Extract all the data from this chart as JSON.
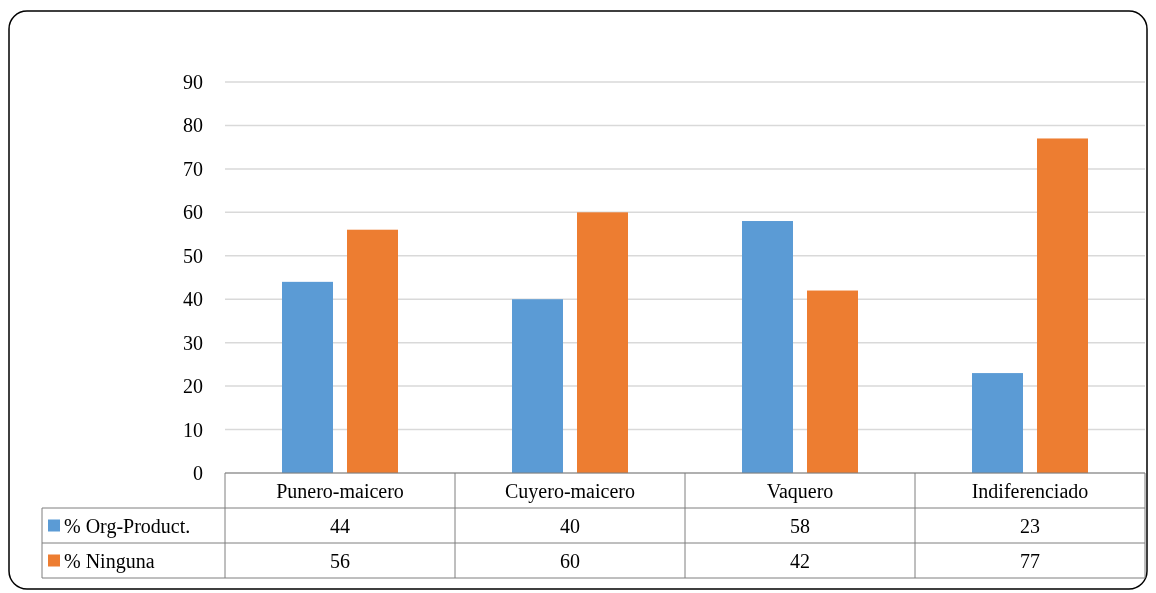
{
  "chart_data": {
    "type": "bar",
    "categories": [
      "Punero-maicero",
      "Cuyero-maicero",
      "Vaquero",
      "Indiferenciado"
    ],
    "series": [
      {
        "name": "% Org-Product.",
        "color": "#5b9bd5",
        "values": [
          44,
          40,
          58,
          23
        ]
      },
      {
        "name": "% Ninguna",
        "color": "#ed7d31",
        "values": [
          56,
          60,
          42,
          77
        ]
      }
    ],
    "ylim": [
      0,
      90
    ],
    "yticks": [
      0,
      10,
      20,
      30,
      40,
      50,
      60,
      70,
      80,
      90
    ],
    "grid": "y",
    "legend": "bottom",
    "data_labels": true
  }
}
